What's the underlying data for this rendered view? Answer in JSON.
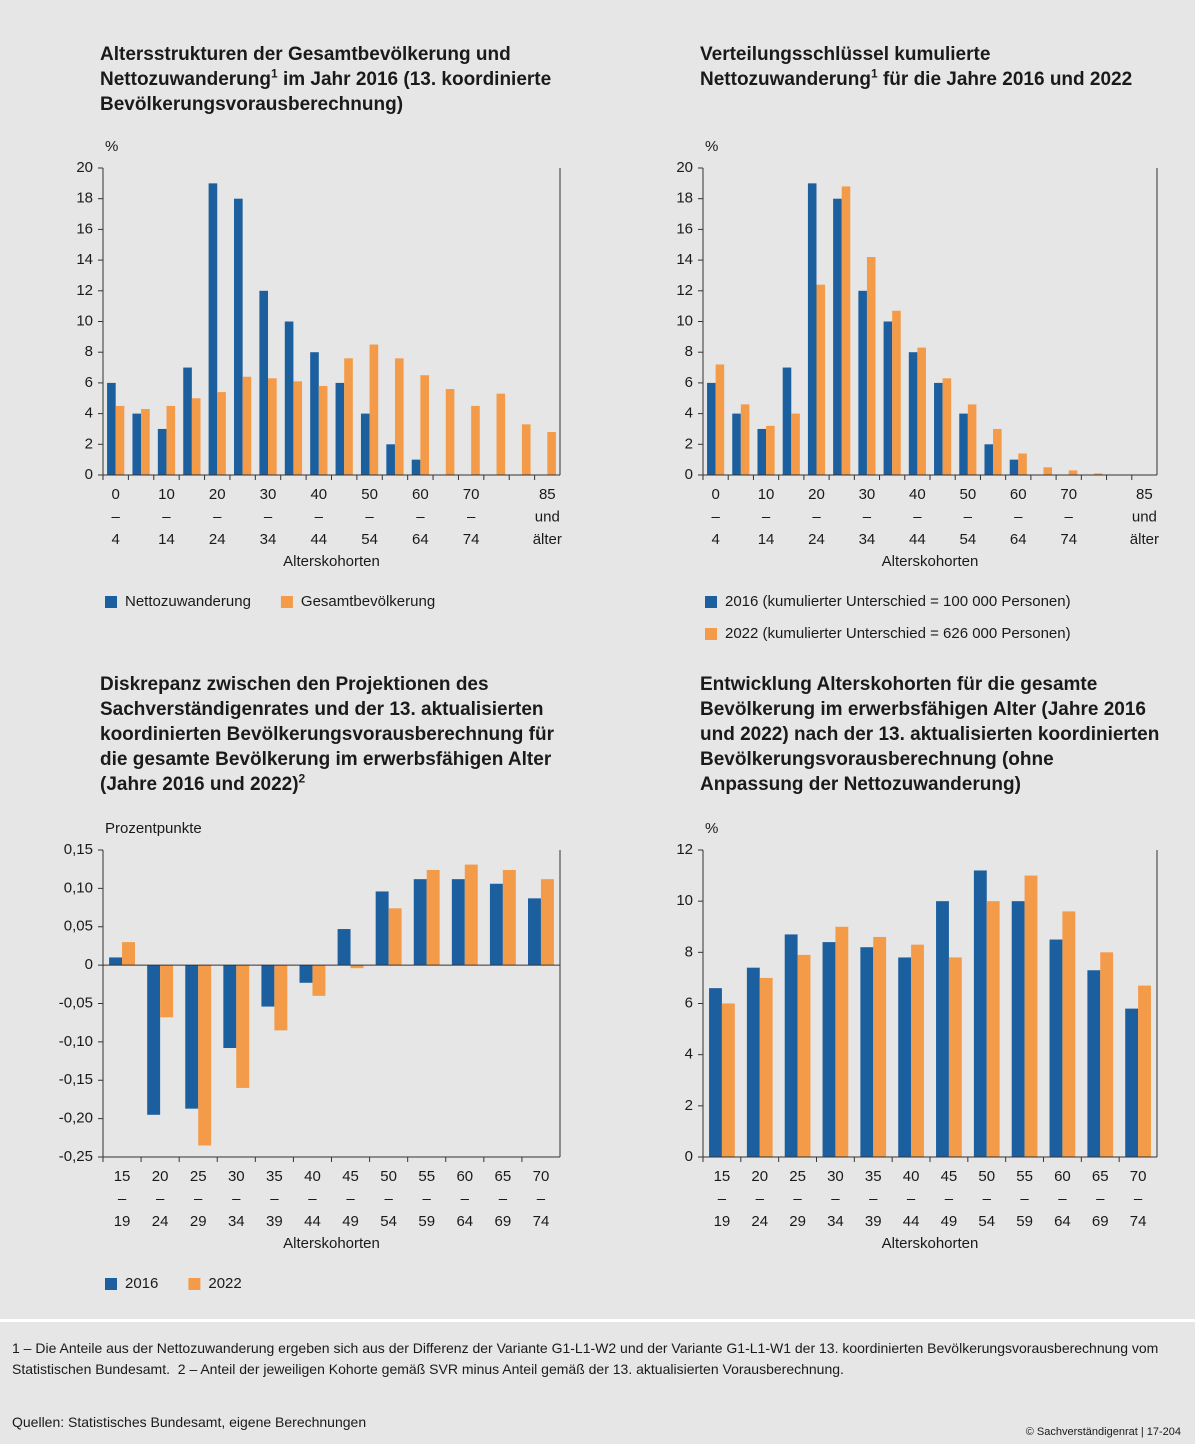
{
  "chart_data": [
    {
      "type": "bar",
      "title": [
        "Altersstrukturen der Gesamtbevölkerung und Nettozuwanderung",
        "1",
        " im Jahr 2016 (13. koordinierte Bevölkerungsvorausberechnung)"
      ],
      "y_label": "%",
      "x_label": "Alterskohorten",
      "categories": [
        [
          "0",
          "–",
          "4"
        ],
        null,
        [
          "10",
          "–",
          "14"
        ],
        null,
        [
          "20",
          "–",
          "24"
        ],
        null,
        [
          "30",
          "–",
          "34"
        ],
        null,
        [
          "40",
          "–",
          "44"
        ],
        null,
        [
          "50",
          "–",
          "54"
        ],
        null,
        [
          "60",
          "–",
          "64"
        ],
        null,
        [
          "70",
          "–",
          "74"
        ],
        null,
        null,
        [
          "85",
          "und",
          "älter"
        ]
      ],
      "series": [
        {
          "name": "Nettozuwanderung",
          "color": "#1c5f9f",
          "values": [
            6,
            4,
            3,
            7,
            19,
            18,
            12,
            10,
            8,
            6,
            4,
            2,
            1,
            0,
            0,
            0,
            0,
            0
          ]
        },
        {
          "name": "Gesamtbevölkerung",
          "color": "#f39b48",
          "values": [
            4.5,
            4.3,
            4.5,
            5.0,
            5.4,
            6.4,
            6.3,
            6.1,
            5.8,
            7.6,
            8.5,
            7.6,
            6.5,
            5.6,
            4.5,
            5.3,
            3.3,
            2.8
          ]
        }
      ],
      "ylim": [
        0,
        20
      ],
      "yticks": [
        0,
        2,
        4,
        6,
        8,
        10,
        12,
        14,
        16,
        18,
        20
      ],
      "grid": false,
      "legend": "inline"
    },
    {
      "type": "bar",
      "title": [
        "Verteilungsschlüssel kumulierte Nettozuwanderung",
        "1",
        " für die Jahre 2016 und 2022"
      ],
      "y_label": "%",
      "x_label": "Alterskohorten",
      "categories": [
        [
          "0",
          "–",
          "4"
        ],
        null,
        [
          "10",
          "–",
          "14"
        ],
        null,
        [
          "20",
          "–",
          "24"
        ],
        null,
        [
          "30",
          "–",
          "34"
        ],
        null,
        [
          "40",
          "–",
          "44"
        ],
        null,
        [
          "50",
          "–",
          "54"
        ],
        null,
        [
          "60",
          "–",
          "64"
        ],
        null,
        [
          "70",
          "–",
          "74"
        ],
        null,
        null,
        [
          "85",
          "und",
          "älter"
        ]
      ],
      "series": [
        {
          "name": "2016 (kumulierter Unterschied = 100 000 Personen)",
          "color": "#1c5f9f",
          "values": [
            6,
            4,
            3,
            7,
            19,
            18,
            12,
            10,
            8,
            6,
            4,
            2,
            1,
            0,
            0,
            0,
            0,
            0
          ]
        },
        {
          "name": "2022 (kumulierter Unterschied = 626 000 Personen)",
          "color": "#f39b48",
          "values": [
            7.2,
            4.6,
            3.2,
            4.0,
            12.4,
            18.8,
            14.2,
            10.7,
            8.3,
            6.3,
            4.6,
            3.0,
            1.4,
            0.5,
            0.3,
            0.1,
            0,
            0
          ]
        }
      ],
      "ylim": [
        0,
        20
      ],
      "yticks": [
        0,
        2,
        4,
        6,
        8,
        10,
        12,
        14,
        16,
        18,
        20
      ],
      "grid": false,
      "legend": "stacked"
    },
    {
      "type": "bar",
      "title": [
        "Diskrepanz zwischen den Projektionen des Sachverständigenrates und der 13. aktualisierten koordinierten Bevölkerungsvorausberechnung für die gesamte Bevölkerung im erwerbsfähigen Alter (Jahre 2016 und 2022)",
        "2"
      ],
      "y_label": "Prozentpunkte",
      "x_label": "Alterskohorten",
      "categories": [
        [
          "15",
          "–",
          "19"
        ],
        [
          "20",
          "–",
          "24"
        ],
        [
          "25",
          "–",
          "29"
        ],
        [
          "30",
          "–",
          "34"
        ],
        [
          "35",
          "–",
          "39"
        ],
        [
          "40",
          "–",
          "44"
        ],
        [
          "45",
          "–",
          "49"
        ],
        [
          "50",
          "–",
          "54"
        ],
        [
          "55",
          "–",
          "59"
        ],
        [
          "60",
          "–",
          "64"
        ],
        [
          "65",
          "–",
          "69"
        ],
        [
          "70",
          "–",
          "74"
        ]
      ],
      "series": [
        {
          "name": "2016",
          "color": "#1c5f9f",
          "values": [
            0.01,
            -0.195,
            -0.187,
            -0.108,
            -0.054,
            -0.023,
            0.047,
            0.096,
            0.112,
            0.112,
            0.106,
            0.087
          ]
        },
        {
          "name": "2022",
          "color": "#f39b48",
          "values": [
            0.03,
            -0.068,
            -0.235,
            -0.16,
            -0.085,
            -0.04,
            -0.004,
            0.074,
            0.124,
            0.131,
            0.124,
            0.112
          ]
        }
      ],
      "ylim": [
        -0.25,
        0.15
      ],
      "yticks": [
        {
          "value": 0.15,
          "label": "0,15"
        },
        {
          "value": 0.1,
          "label": "0,10"
        },
        {
          "value": 0.05,
          "label": "0,05"
        },
        0,
        {
          "value": -0.05,
          "label": "-0,05"
        },
        {
          "value": -0.1,
          "label": "-0,10"
        },
        {
          "value": -0.15,
          "label": "-0,15"
        },
        {
          "value": -0.2,
          "label": "-0,20"
        },
        {
          "value": -0.25,
          "label": "-0,25"
        }
      ],
      "grid": false,
      "legend": "inline"
    },
    {
      "type": "bar",
      "title": "Entwicklung Alterskohorten für die gesamte Bevölkerung im erwerbsfähigen Alter (Jahre 2016 und 2022) nach der 13. aktualisierten koordinierten Bevölkerungsvorausberechnung (ohne Anpassung der Nettozuwanderung)",
      "y_label": "%",
      "x_label": "Alterskohorten",
      "categories": [
        [
          "15",
          "–",
          "19"
        ],
        [
          "20",
          "–",
          "24"
        ],
        [
          "25",
          "–",
          "29"
        ],
        [
          "30",
          "–",
          "34"
        ],
        [
          "35",
          "–",
          "39"
        ],
        [
          "40",
          "–",
          "44"
        ],
        [
          "45",
          "–",
          "49"
        ],
        [
          "50",
          "–",
          "54"
        ],
        [
          "55",
          "–",
          "59"
        ],
        [
          "60",
          "–",
          "64"
        ],
        [
          "65",
          "–",
          "69"
        ],
        [
          "70",
          "–",
          "74"
        ]
      ],
      "series": [
        {
          "name": "2016",
          "color": "#1c5f9f",
          "values": [
            6.6,
            7.4,
            8.7,
            8.4,
            8.2,
            7.8,
            10.0,
            11.2,
            10.0,
            8.5,
            7.3,
            5.8
          ]
        },
        {
          "name": "2022",
          "color": "#f39b48",
          "values": [
            6.0,
            7.0,
            7.9,
            9.0,
            8.6,
            8.3,
            7.8,
            10.0,
            11.0,
            9.6,
            8.0,
            6.7
          ]
        }
      ],
      "ylim": [
        0,
        12
      ],
      "yticks": [
        0,
        2,
        4,
        6,
        8,
        10,
        12
      ],
      "grid": false,
      "legend": "none"
    }
  ],
  "footnotes": [
    "1 – Die Anteile aus der Nettozuwanderung ergeben sich aus der Differenz der Variante G1-L1-W2 und der Variante G1-L1-W1 der 13. koordinierten Bevölkerungsvorausberechnung vom Statistischen Bundesamt.",
    "2 – Anteil der jeweiligen Kohorte gemäß SVR minus Anteil gemäß der 13. aktualisierten Vorausberechnung."
  ],
  "source": "Quellen: Statistisches Bundesamt, eigene Berechnungen",
  "copyright": "© Sachverständigenrat | 17-204"
}
